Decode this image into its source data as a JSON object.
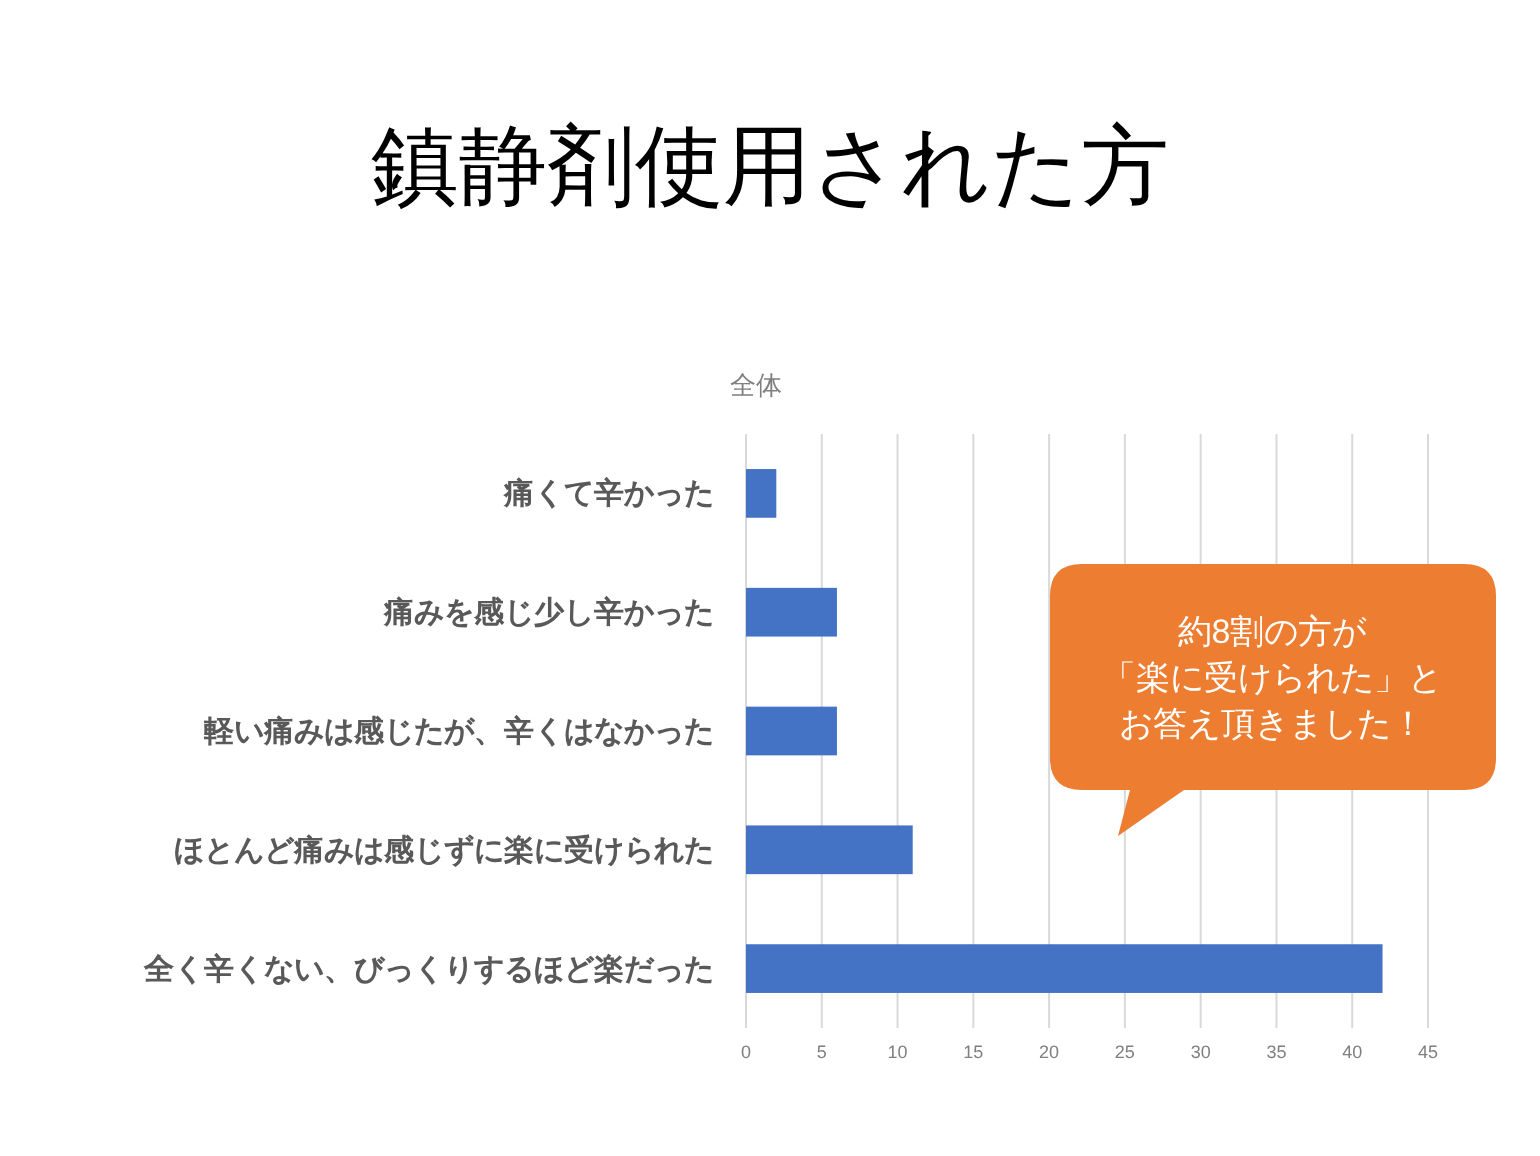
{
  "chart_data": {
    "type": "bar",
    "orientation": "horizontal",
    "title": "鎮静剤使用された方",
    "subtitle": "全体",
    "categories": [
      "痛くて辛かった",
      "痛みを感じ少し辛かった",
      "軽い痛みは感じたが、辛くはなかった",
      "ほとんど痛みは感じずに楽に受けられた",
      "全く辛くない、びっくりするほど楽だった"
    ],
    "values": [
      2,
      6,
      6,
      11,
      42
    ],
    "color": "#4472c4",
    "xlim": [
      0,
      45
    ],
    "xticks": [
      0,
      5,
      10,
      15,
      20,
      25,
      30,
      35,
      40,
      45
    ],
    "grid": "x",
    "annotations": [
      "約8割の方が",
      "「楽に受けられた」と",
      "お答え頂きました！"
    ]
  }
}
